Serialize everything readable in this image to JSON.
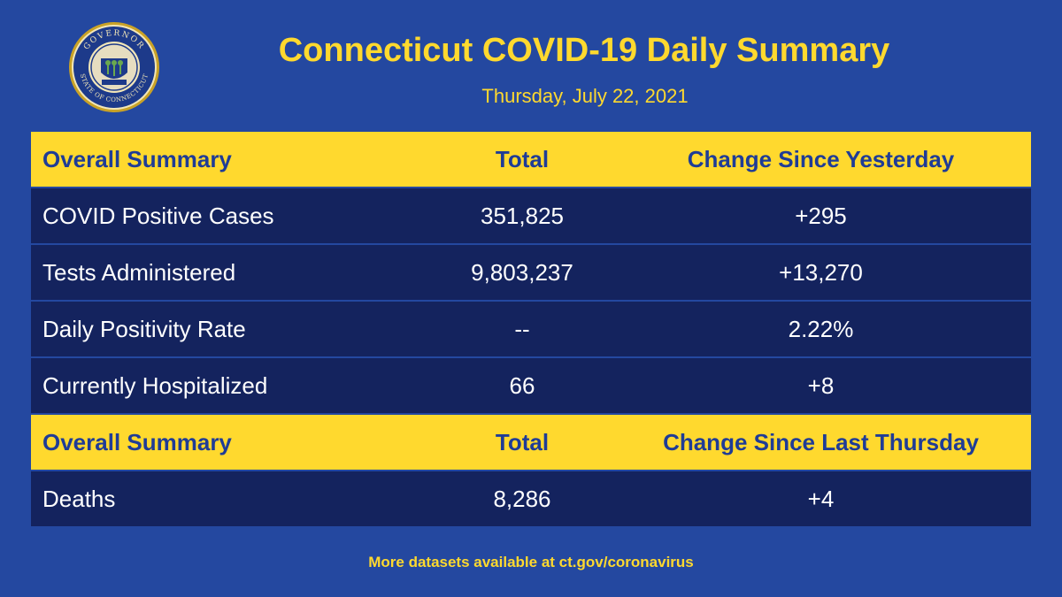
{
  "header": {
    "title": "Connecticut COVID-19 Daily Summary",
    "date": "Thursday, July 22, 2021",
    "seal": {
      "icon": "state-seal-icon",
      "top_text": "GOVERNOR",
      "bottom_text": "STATE OF CONNECTICUT"
    }
  },
  "table": {
    "daily_header": {
      "label": "Overall Summary",
      "total": "Total",
      "change": "Change Since Yesterday"
    },
    "daily_rows": [
      {
        "label": "COVID Positive Cases",
        "total": "351,825",
        "change": "+295"
      },
      {
        "label": "Tests Administered",
        "total": "9,803,237",
        "change": "+13,270"
      },
      {
        "label": "Daily Positivity Rate",
        "total": "--",
        "change": "2.22%"
      },
      {
        "label": "Currently Hospitalized",
        "total": "66",
        "change": "+8"
      }
    ],
    "weekly_header": {
      "label": "Overall Summary",
      "total": "Total",
      "change": "Change Since Last Thursday"
    },
    "weekly_rows": [
      {
        "label": "Deaths",
        "total": "8,286",
        "change": "+4"
      }
    ]
  },
  "footer": {
    "text": "More datasets available at ct.gov/coronavirus"
  },
  "colors": {
    "background": "#2448a0",
    "accent_yellow": "#ffd92e",
    "row_navy": "#14235e",
    "header_text_blue": "#1f3c96"
  }
}
